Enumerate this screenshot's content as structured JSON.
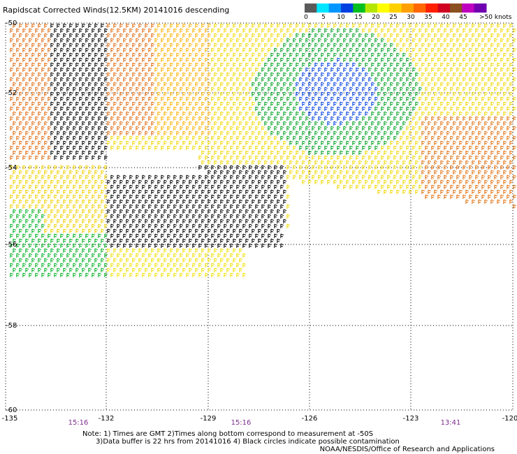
{
  "title": "Rapidscat Corrected Winds(12.5KM) 20141016 descending",
  "colorbar": {
    "ticks": [
      "0",
      "5",
      "10",
      "15",
      "20",
      "25",
      "30",
      "35",
      "40",
      "45"
    ],
    "units": ">50 knots",
    "colors": [
      "#5a5a5a",
      "#00e6ff",
      "#0096ff",
      "#0040e0",
      "#00c020",
      "#b4e600",
      "#ffff00",
      "#ffd000",
      "#ffa000",
      "#ff6800",
      "#ff2000",
      "#d00020",
      "#8a5020",
      "#c000c0",
      "#7000b0"
    ]
  },
  "map": {
    "lat_ticks": [
      "-50",
      "-52",
      "-54",
      "-56",
      "-58",
      "-60"
    ],
    "lon_ticks": [
      "-135",
      "-132",
      "-129",
      "-126",
      "-123",
      "-120"
    ],
    "pass_times": [
      "15:16",
      "15:16",
      "13:41"
    ]
  },
  "notes": "Note: 1) Times are GMT 2)Times along bottom correspond to measurement at -50S\n      3)Data buffer is 22 hrs from 20141016 4) Black circles indicate possible contamination",
  "credit": "NOAA/NESDIS/Office of Research and Applications"
}
